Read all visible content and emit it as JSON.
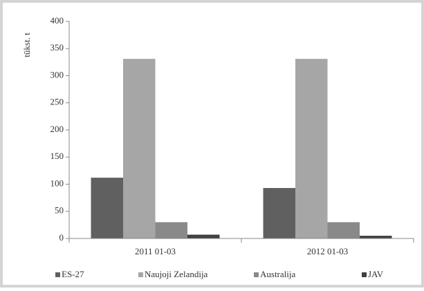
{
  "chart_data": {
    "type": "bar",
    "y_label": "tūkst. t",
    "categories": [
      "2011 01-03",
      "2012 01-03"
    ],
    "series": [
      {
        "name": "ES-27",
        "color": "#606060",
        "values": [
          112,
          93
        ]
      },
      {
        "name": "Naujoji Zelandija",
        "color": "#a6a6a6",
        "values": [
          331,
          331
        ]
      },
      {
        "name": "Australija",
        "color": "#898989",
        "values": [
          30,
          30
        ]
      },
      {
        "name": "JAV",
        "color": "#404040",
        "values": [
          7,
          5
        ]
      }
    ],
    "ylim": [
      0,
      400
    ],
    "yticks": [
      0,
      50,
      100,
      150,
      200,
      250,
      300,
      350,
      400
    ],
    "grid": false
  }
}
